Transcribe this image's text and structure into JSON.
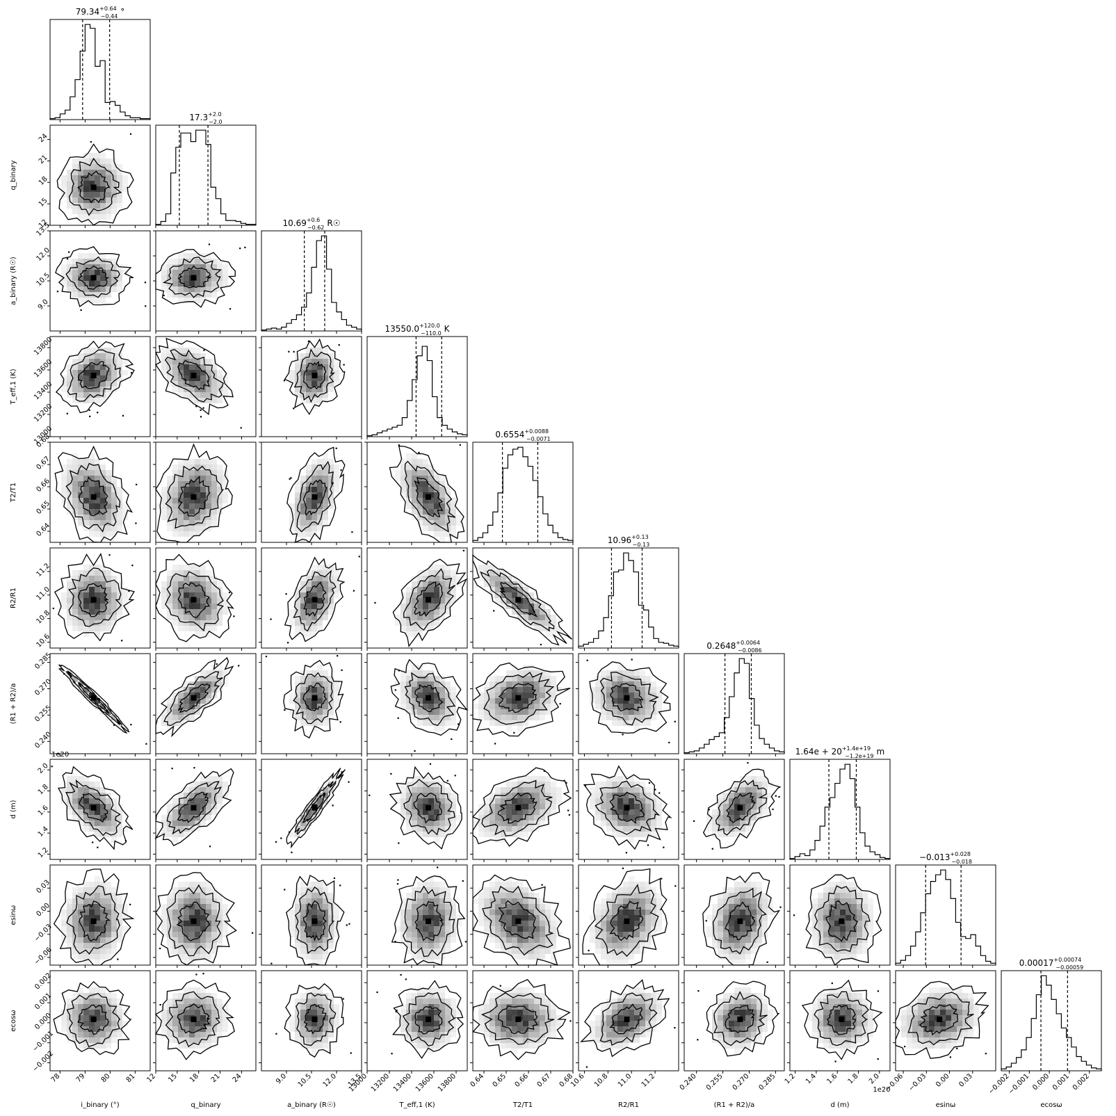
{
  "chart_data": {
    "type": "corner",
    "parameters": [
      {
        "name": "inclination",
        "axis_label": "i_binary (°)",
        "range": [
          77.6,
          81.6
        ],
        "ticks": [
          78,
          79,
          80,
          81
        ],
        "tick_labels": [
          "78",
          "79",
          "80",
          "81"
        ],
        "median": 79.34,
        "lo": 78.9,
        "hi": 79.98,
        "title": "79.34",
        "title_sup": "+0.64",
        "title_sub": "−0.44",
        "title_unit": "°",
        "hist": [
          0.01,
          0.02,
          0.06,
          0.1,
          0.24,
          0.42,
          0.72,
          1.0,
          0.96,
          0.56,
          0.62,
          0.18,
          0.19,
          0.15,
          0.08,
          0.04,
          0.02,
          0.02,
          0.01,
          0.01
        ]
      },
      {
        "name": "mass_ratio",
        "axis_label": "q_binary",
        "range": [
          12,
          26
        ],
        "ticks": [
          12,
          15,
          18,
          21,
          24
        ],
        "tick_labels": [
          "12",
          "15",
          "18",
          "21",
          "24"
        ],
        "median": 17.3,
        "lo": 15.3,
        "hi": 19.3,
        "title": "17.3",
        "title_sup": "+2.0",
        "title_sub": "−2.0",
        "title_unit": "",
        "hist": [
          0.01,
          0.04,
          0.12,
          0.55,
          0.82,
          0.97,
          0.97,
          0.88,
          1.0,
          1.0,
          0.85,
          0.4,
          0.28,
          0.12,
          0.05,
          0.05,
          0.04,
          0.02,
          0.01,
          0.01
        ]
      },
      {
        "name": "semimajor_axis",
        "axis_label": "a_binary (R☉)",
        "range": [
          7.5,
          13.5
        ],
        "ticks": [
          9.0,
          10.5,
          12.0,
          13.5
        ],
        "tick_labels": [
          "9.0",
          "10.5",
          "12.0",
          "13.5"
        ],
        "median": 10.69,
        "lo": 10.07,
        "hi": 11.29,
        "title": "10.69",
        "title_sup": "+0.6",
        "title_sub": "−0.62",
        "title_unit": "R☉",
        "hist": [
          0.01,
          0.02,
          0.03,
          0.02,
          0.04,
          0.08,
          0.12,
          0.17,
          0.25,
          0.4,
          0.67,
          0.95,
          1.0,
          0.65,
          0.3,
          0.2,
          0.12,
          0.06,
          0.04,
          0.02
        ]
      },
      {
        "name": "teff1",
        "axis_label": "T_eff,1 (K)",
        "range": [
          13000,
          13900
        ],
        "ticks": [
          13000,
          13200,
          13400,
          13600,
          13800
        ],
        "tick_labels": [
          "13000",
          "13200",
          "13400",
          "13600",
          "13800"
        ],
        "median": 13550,
        "lo": 13440,
        "hi": 13670,
        "title": "13550.0",
        "title_sup": "+120.0",
        "title_sub": "−110.0",
        "title_unit": "K",
        "hist": [
          0.01,
          0.02,
          0.04,
          0.06,
          0.08,
          0.1,
          0.12,
          0.2,
          0.38,
          0.6,
          0.85,
          0.95,
          0.8,
          0.42,
          0.2,
          0.12,
          0.08,
          0.05,
          0.03,
          0.02
        ]
      },
      {
        "name": "temp_ratio",
        "axis_label": "T2/T1",
        "range": [
          0.635,
          0.68
        ],
        "ticks": [
          0.64,
          0.65,
          0.66,
          0.67,
          0.68
        ],
        "tick_labels": [
          "0.64",
          "0.65",
          "0.66",
          "0.67",
          "0.68"
        ],
        "median": 0.6554,
        "lo": 0.6483,
        "hi": 0.6642,
        "title": "0.6554",
        "title_sup": "+0.0088",
        "title_sub": "−0.0071",
        "title_unit": "",
        "hist": [
          0.02,
          0.05,
          0.1,
          0.18,
          0.32,
          0.52,
          0.78,
          0.92,
          0.98,
          1.0,
          0.9,
          0.8,
          0.65,
          0.48,
          0.3,
          0.18,
          0.1,
          0.05,
          0.03,
          0.02
        ]
      },
      {
        "name": "radius_ratio",
        "axis_label": "R2/R1",
        "range": [
          10.55,
          11.4
        ],
        "ticks": [
          10.6,
          10.8,
          11.0,
          11.2
        ],
        "tick_labels": [
          "10.6",
          "10.8",
          "11.0",
          "11.2"
        ],
        "median": 10.96,
        "lo": 10.83,
        "hi": 11.09,
        "title": "10.96",
        "title_sup": "+0.13",
        "title_sub": "−0.13",
        "title_unit": "",
        "hist": [
          0.02,
          0.04,
          0.06,
          0.1,
          0.18,
          0.32,
          0.55,
          0.8,
          0.82,
          1.0,
          0.92,
          0.8,
          0.45,
          0.4,
          0.22,
          0.1,
          0.06,
          0.05,
          0.03,
          0.02
        ]
      },
      {
        "name": "sum_radii",
        "axis_label": "(R1 + R2)/a",
        "range": [
          0.233,
          0.29
        ],
        "ticks": [
          0.24,
          0.255,
          0.27,
          0.285
        ],
        "tick_labels": [
          "0.240",
          "0.255",
          "0.270",
          "0.285"
        ],
        "median": 0.2648,
        "lo": 0.2562,
        "hi": 0.2712,
        "title": "0.2648",
        "title_sup": "+0.0064",
        "title_sub": "−0.0086",
        "title_unit": "",
        "hist": [
          0.01,
          0.02,
          0.03,
          0.06,
          0.1,
          0.15,
          0.18,
          0.22,
          0.38,
          0.6,
          0.85,
          1.0,
          0.95,
          0.58,
          0.3,
          0.16,
          0.1,
          0.06,
          0.03,
          0.02
        ]
      },
      {
        "name": "distance",
        "axis_label": "d (m)",
        "range": [
          1.15e+20,
          2.1e+20
        ],
        "ticks": [
          1.2e+20,
          1.4e+20,
          1.6e+20,
          1.8e+20,
          2e+20
        ],
        "tick_labels": [
          "1.2",
          "1.4",
          "1.6",
          "1.8",
          "2.0"
        ],
        "offset_label": "1e20",
        "median": 1.64e+20,
        "lo": 1.52e+20,
        "hi": 1.78e+20,
        "title": "1.64e + 20",
        "title_sup": "+1.4e+19",
        "title_sub": "−1.2e+19",
        "title_unit": "m",
        "hist": [
          0.01,
          0.03,
          0.06,
          0.04,
          0.1,
          0.2,
          0.35,
          0.55,
          0.65,
          0.8,
          0.95,
          1.0,
          0.85,
          0.55,
          0.28,
          0.14,
          0.08,
          0.05,
          0.02,
          0.01
        ]
      },
      {
        "name": "esinw",
        "axis_label": "esinω",
        "range": [
          -0.07,
          0.06
        ],
        "ticks": [
          -0.06,
          -0.03,
          0.0,
          0.03
        ],
        "tick_labels": [
          "−0.06",
          "−0.03",
          "0.00",
          "0.03"
        ],
        "median": -0.013,
        "lo": -0.031,
        "hi": 0.015,
        "title": "−0.013",
        "title_sup": "+0.028",
        "title_sub": "−0.018",
        "title_unit": "",
        "hist": [
          0.02,
          0.05,
          0.1,
          0.2,
          0.35,
          0.55,
          0.75,
          0.88,
          0.95,
          1.0,
          0.9,
          0.7,
          0.45,
          0.3,
          0.28,
          0.32,
          0.2,
          0.1,
          0.04,
          0.02
        ]
      },
      {
        "name": "ecosw",
        "axis_label": "ecosω",
        "range": [
          -0.0024,
          0.0026
        ],
        "ticks": [
          -0.002,
          -0.001,
          0.0,
          0.001,
          0.002
        ],
        "tick_labels": [
          "−0.002",
          "−0.001",
          "0.000",
          "0.001",
          "0.002"
        ],
        "median": 0.00017,
        "lo": -0.00042,
        "hi": 0.00091,
        "title": "0.00017",
        "title_sup": "+0.00074",
        "title_sub": "−0.00059",
        "title_unit": "",
        "hist": [
          0.02,
          0.04,
          0.08,
          0.14,
          0.22,
          0.35,
          0.55,
          0.8,
          1.0,
          0.9,
          0.75,
          0.6,
          0.45,
          0.35,
          0.25,
          0.15,
          0.1,
          0.06,
          0.03,
          0.02
        ]
      }
    ],
    "correlations": [
      [
        0,
        -0.7
      ],
      [
        0,
        0.05,
        0.15
      ],
      [
        0.3,
        -0.45,
        0.1,
        0
      ],
      [
        -0.3,
        0.2,
        0.45,
        -0.55,
        0
      ],
      [
        0,
        -0.2,
        0.4,
        0.45,
        -0.85,
        0
      ],
      [
        -0.98,
        0.75,
        0.1,
        -0.3,
        0.25,
        -0.15,
        0
      ],
      [
        -0.55,
        0.65,
        0.93,
        -0.15,
        0.4,
        -0.25,
        0.5,
        0
      ],
      [
        0.05,
        0.0,
        0.0,
        0.05,
        -0.35,
        0.3,
        0.2,
        0.0,
        0
      ],
      [
        0.0,
        0.05,
        0.05,
        0.05,
        0.0,
        0.4,
        0.15,
        0.0,
        0.2,
        0
      ]
    ],
    "quantiles": [
      0.16,
      0.5,
      0.84
    ]
  }
}
